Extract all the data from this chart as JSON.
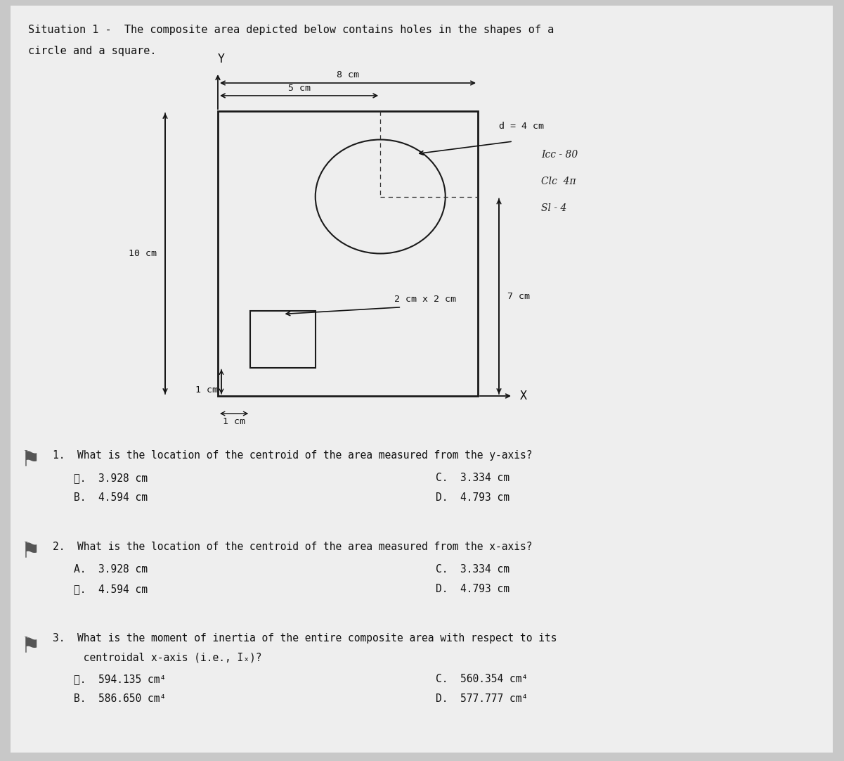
{
  "bg_color": "#c8c8c8",
  "paper_color": "#eeeeee",
  "title_line1": "Situation 1 -  The composite area depicted below contains holes in the shapes of a",
  "title_line2": "circle and a square.",
  "q1_text": "1.  What is the location of the centroid of the area measured from the y-axis?",
  "q1_A": "Ⓐ.  3.928 cm",
  "q1_B": "B.  4.594 cm",
  "q1_C": "C.  3.334 cm",
  "q1_D": "D.  4.793 cm",
  "q2_text": "2.  What is the location of the centroid of the area measured from the x-axis?",
  "q2_A": "A.  3.928 cm",
  "q2_B": "Ⓑ.  4.594 cm",
  "q2_C": "C.  3.334 cm",
  "q2_D": "D.  4.793 cm",
  "q3_text": "3.  What is the moment of inertia of the entire composite area with respect to its",
  "q3_text2": "     centroidal x-axis (i.e., Iₓ)?",
  "q3_A": "Ⓐ.  594.135 cm⁴",
  "q3_B": "B.  586.650 cm⁴",
  "q3_C": "C.  560.354 cm⁴",
  "q3_D": "D.  577.777 cm⁴",
  "font_mono": "monospace",
  "font_size_title": 11,
  "font_size_q": 10.5,
  "font_size_label": 9.5,
  "text_color": "#111111",
  "note_line1": "Icc - 80",
  "note_line2": "Clc  4π",
  "note_line3": "Sl - 4"
}
